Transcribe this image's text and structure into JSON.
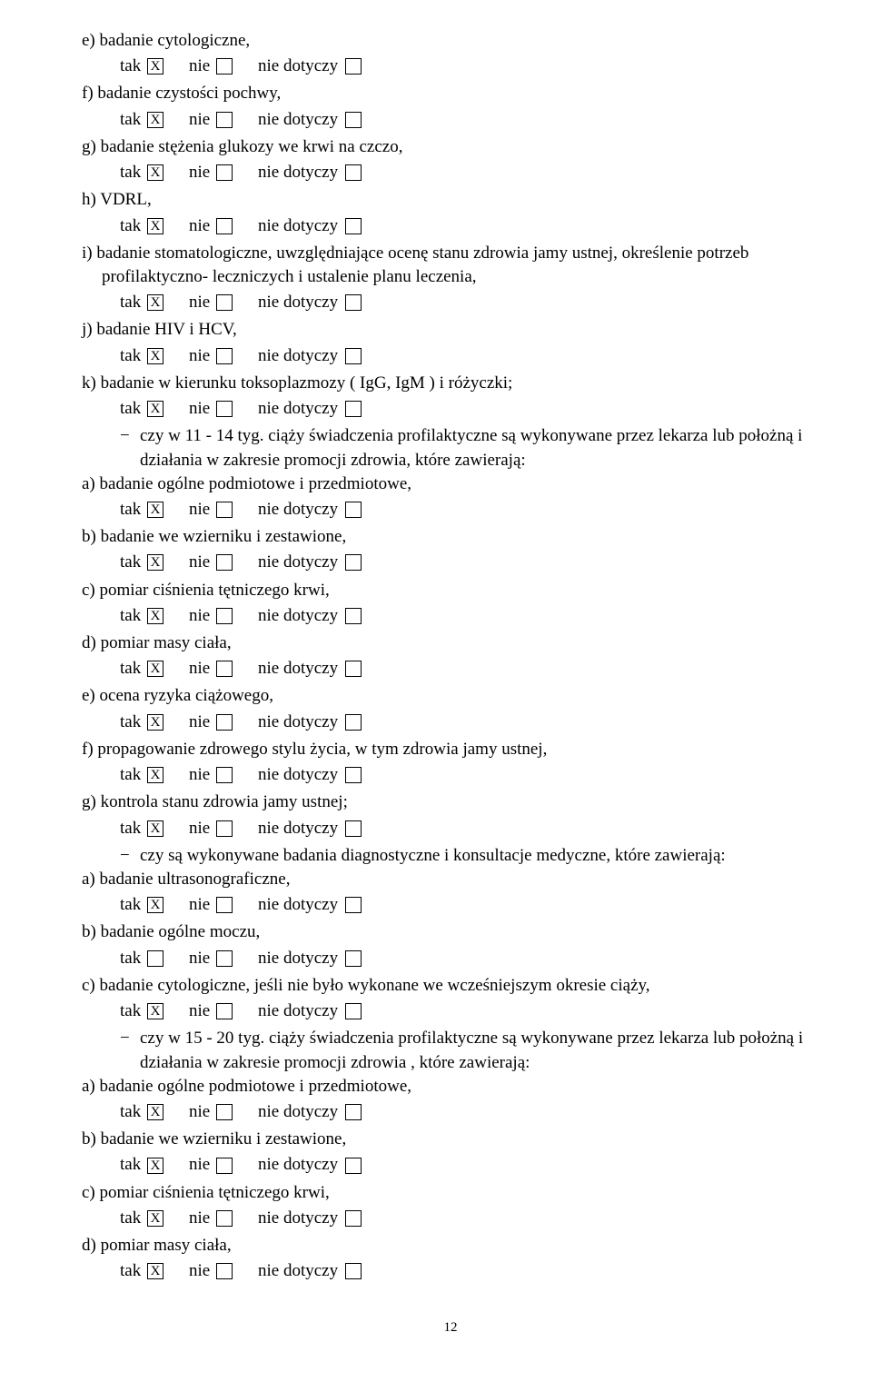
{
  "labels": {
    "tak": "tak",
    "nie": "nie",
    "nie_dotyczy": "nie dotyczy",
    "x": "X",
    "bullet": "−"
  },
  "items": [
    {
      "type": "q",
      "text": "e) badanie cytologiczne,",
      "tak": true
    },
    {
      "type": "q",
      "text": "f) badanie czystości pochwy,",
      "tak": true
    },
    {
      "type": "q",
      "text": "g) badanie stężenia glukozy we krwi na czczo,",
      "tak": true
    },
    {
      "type": "q",
      "text": "h) VDRL,",
      "tak": true
    },
    {
      "type": "q",
      "text": "i) badanie stomatologiczne, uwzględniające ocenę stanu zdrowia jamy ustnej, określenie potrzeb profilaktyczno- leczniczych i ustalenie planu leczenia,",
      "tak": true,
      "wrap": true
    },
    {
      "type": "q",
      "text": "j) badanie HIV i HCV,",
      "tak": true
    },
    {
      "type": "q",
      "text": "k) badanie w kierunku toksoplazmozy ( IgG, IgM ) i różyczki;",
      "tak": true
    },
    {
      "type": "bullet",
      "text": "czy w 11 - 14 tyg. ciąży świadczenia profilaktyczne są wykonywane przez lekarza lub położną i działania w zakresie promocji zdrowia, które zawierają:"
    },
    {
      "type": "q",
      "text": "a) badanie ogólne podmiotowe i przedmiotowe,",
      "tak": true
    },
    {
      "type": "q",
      "text": "b) badanie we wzierniku i zestawione,",
      "tak": true
    },
    {
      "type": "q",
      "text": "c) pomiar ciśnienia tętniczego krwi,",
      "tak": true
    },
    {
      "type": "q",
      "text": "d) pomiar masy ciała,",
      "tak": true
    },
    {
      "type": "q",
      "text": "e) ocena ryzyka ciążowego,",
      "tak": true
    },
    {
      "type": "q",
      "text": "f) propagowanie zdrowego stylu życia, w tym zdrowia jamy ustnej,",
      "tak": true
    },
    {
      "type": "q",
      "text": "g) kontrola stanu zdrowia jamy ustnej;",
      "tak": true
    },
    {
      "type": "bullet",
      "text": "czy są wykonywane badania diagnostyczne i konsultacje medyczne, które zawierają:"
    },
    {
      "type": "q",
      "text": "a) badanie ultrasonograficzne,",
      "tak": true
    },
    {
      "type": "q",
      "text": "b) badanie ogólne moczu,",
      "tak": false
    },
    {
      "type": "q",
      "text": "c) badanie cytologiczne, jeśli nie było wykonane we wcześniejszym okresie ciąży,",
      "tak": true
    },
    {
      "type": "bullet",
      "text": "czy w 15 - 20 tyg. ciąży świadczenia profilaktyczne są wykonywane przez  lekarza lub położną i działania w zakresie promocji zdrowia , które zawierają:"
    },
    {
      "type": "q",
      "text": "a) badanie ogólne podmiotowe i przedmiotowe,",
      "tak": true
    },
    {
      "type": "q",
      "text": "b) badanie we wzierniku i zestawione,",
      "tak": true
    },
    {
      "type": "q",
      "text": "c) pomiar ciśnienia tętniczego krwi,",
      "tak": true
    },
    {
      "type": "q",
      "text": "d) pomiar masy ciała,",
      "tak": true
    }
  ],
  "page_number": "12"
}
